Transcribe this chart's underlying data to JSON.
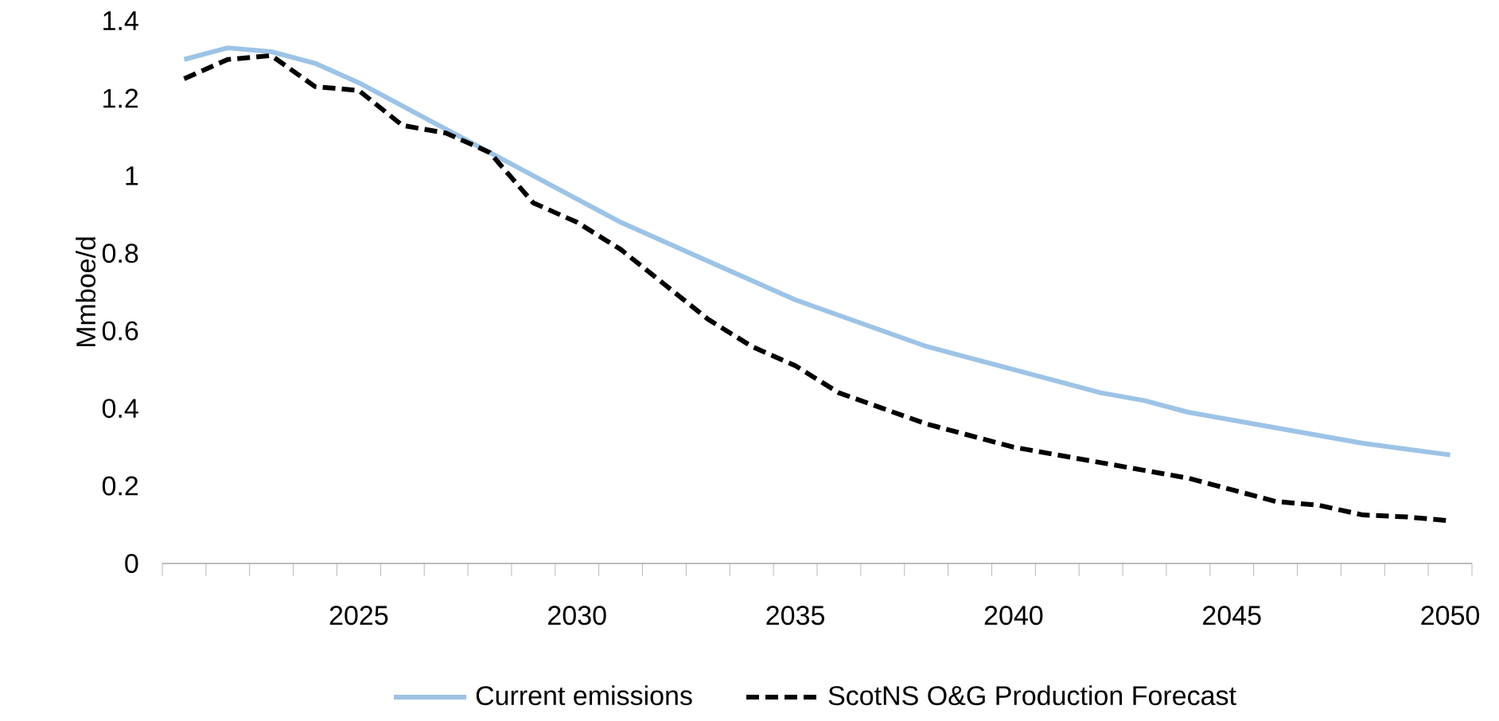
{
  "chart_data": {
    "type": "line",
    "ylabel": "Mmboe/d",
    "x": [
      2021,
      2022,
      2023,
      2024,
      2025,
      2026,
      2027,
      2028,
      2029,
      2030,
      2031,
      2032,
      2033,
      2034,
      2035,
      2036,
      2037,
      2038,
      2039,
      2040,
      2041,
      2042,
      2043,
      2044,
      2045,
      2046,
      2047,
      2048,
      2049,
      2050
    ],
    "series": [
      {
        "name": "Current emissions",
        "color": "#9dc3e6",
        "line_style": "solid",
        "values": [
          1.3,
          1.33,
          1.32,
          1.29,
          1.24,
          1.18,
          1.12,
          1.06,
          1.0,
          0.94,
          0.88,
          0.83,
          0.78,
          0.73,
          0.68,
          0.64,
          0.6,
          0.56,
          0.53,
          0.5,
          0.47,
          0.44,
          0.42,
          0.39,
          0.37,
          0.35,
          0.33,
          0.31,
          0.295,
          0.28
        ]
      },
      {
        "name": "ScotNS O&G Production Forecast",
        "color": "#000000",
        "line_style": "dashed",
        "values": [
          1.25,
          1.3,
          1.31,
          1.23,
          1.22,
          1.13,
          1.11,
          1.06,
          0.93,
          0.88,
          0.81,
          0.72,
          0.63,
          0.56,
          0.51,
          0.44,
          0.4,
          0.36,
          0.33,
          0.3,
          0.28,
          0.26,
          0.24,
          0.22,
          0.19,
          0.16,
          0.15,
          0.125,
          0.12,
          0.11
        ]
      }
    ],
    "xlim": [
      2020.5,
      2050.5
    ],
    "xticks": [
      2025,
      2030,
      2035,
      2040,
      2045,
      2050
    ],
    "ylim": [
      0,
      1.4
    ],
    "yticks": [
      0,
      0.2,
      0.4,
      0.6,
      0.8,
      1,
      1.2,
      1.4
    ],
    "grid": false,
    "legend": "bottom",
    "marker": "none"
  }
}
